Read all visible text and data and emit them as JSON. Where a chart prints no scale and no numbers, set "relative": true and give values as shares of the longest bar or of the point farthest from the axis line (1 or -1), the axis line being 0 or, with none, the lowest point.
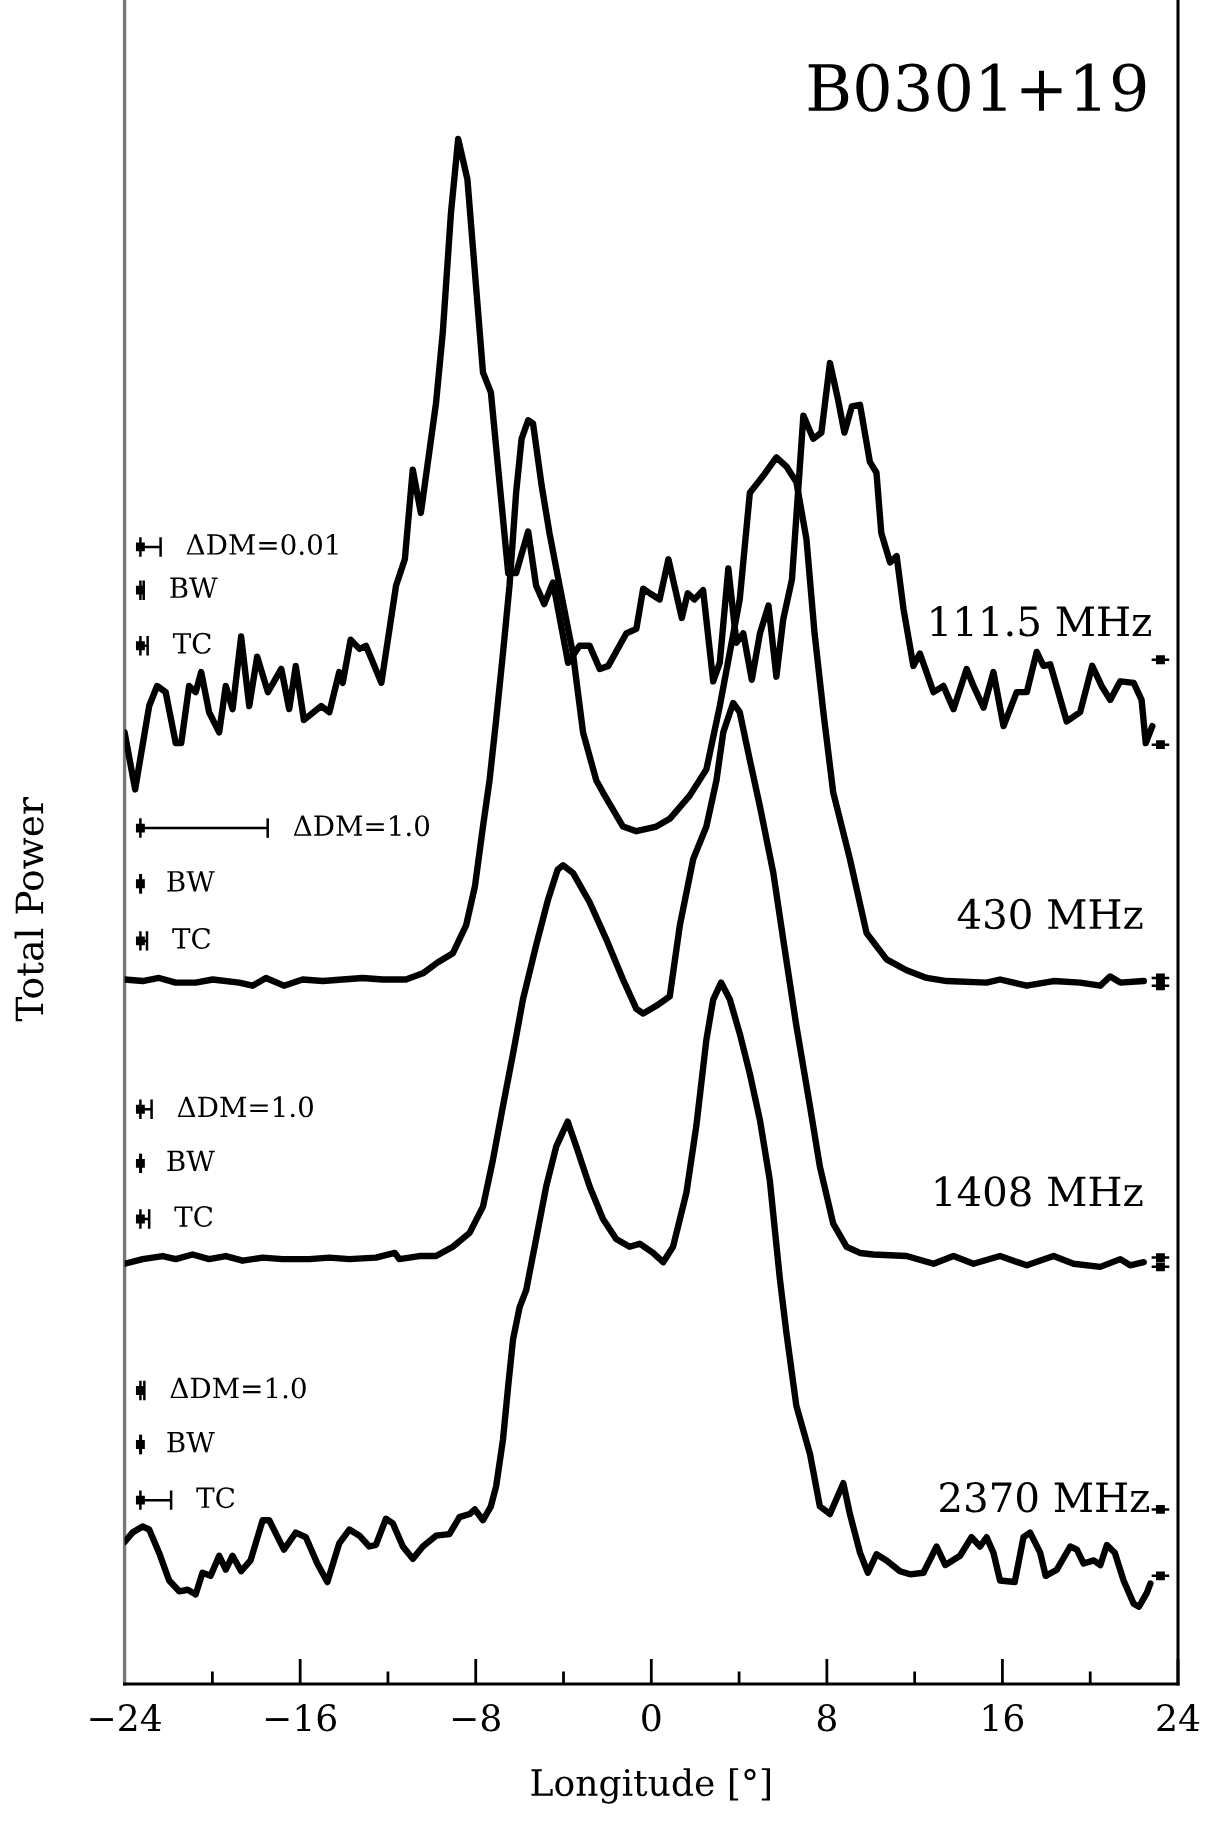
{
  "chart_data": {
    "type": "line",
    "title": "B0301+19",
    "xlabel": "Longitude [°]",
    "ylabel": "Total Power",
    "relative": true,
    "xlim": [
      -24,
      24
    ],
    "xticks": [
      {
        "value": -24,
        "label": "−24"
      },
      {
        "value": -20,
        "label": null
      },
      {
        "value": -16,
        "label": "−16"
      },
      {
        "value": -12,
        "label": null
      },
      {
        "value": -8,
        "label": "−8"
      },
      {
        "value": -4,
        "label": null
      },
      0,
      {
        "value": 4,
        "label": null
      },
      8,
      {
        "value": 12,
        "label": null
      },
      16,
      {
        "value": 20,
        "label": null
      },
      24
    ],
    "series": [
      {
        "name": "111.5 MHz",
        "color": "#000000",
        "x": [
          -24.0,
          -23.52,
          -22.88,
          -22.52,
          -22.13,
          -21.67,
          -21.42,
          -21.06,
          -20.76,
          -20.51,
          -20.15,
          -19.69,
          -19.39,
          -19.08,
          -18.69,
          -18.32,
          -17.96,
          -17.47,
          -16.86,
          -16.5,
          -16.2,
          -15.83,
          -15.04,
          -14.67,
          -14.22,
          -14.06,
          -13.7,
          -13.3,
          -13.0,
          -12.3,
          -11.63,
          -11.23,
          -10.87,
          -10.5,
          -9.81,
          -9.5,
          -9.13,
          -8.8,
          -8.38,
          -7.67,
          -7.31,
          -6.52,
          -6.16,
          -5.61,
          -5.25,
          -4.88,
          -4.48,
          -3.79,
          -3.27,
          -2.81,
          -2.35,
          -1.96,
          -1.14,
          -0.68,
          -0.37,
          -0.07,
          0.38,
          0.78,
          1.39,
          1.66,
          1.96,
          2.36,
          2.82,
          3.12,
          3.51,
          3.88,
          4.19,
          4.58,
          4.95,
          5.34,
          5.7,
          6.01,
          6.41,
          6.93,
          7.38,
          7.75,
          8.14,
          8.5,
          8.8,
          9.14,
          9.51,
          9.96,
          10.26,
          10.48,
          10.88,
          11.18,
          11.49,
          11.94,
          12.24,
          12.86,
          13.31,
          13.77,
          14.37,
          14.68,
          15.14,
          15.59,
          16.05,
          16.65,
          17.11,
          17.56,
          17.87,
          18.18,
          18.93,
          19.54,
          20.09,
          20.52,
          20.91,
          21.37,
          21.98,
          22.34,
          22.53,
          22.83
        ],
        "values": [
          0.616,
          0.579,
          0.633,
          0.646,
          0.642,
          0.609,
          0.609,
          0.646,
          0.642,
          0.655,
          0.629,
          0.616,
          0.646,
          0.631,
          0.678,
          0.633,
          0.665,
          0.642,
          0.657,
          0.631,
          0.659,
          0.624,
          0.633,
          0.629,
          0.655,
          0.648,
          0.676,
          0.67,
          0.672,
          0.648,
          0.711,
          0.728,
          0.786,
          0.758,
          0.829,
          0.875,
          0.952,
          1.0,
          0.974,
          0.849,
          0.836,
          0.719,
          0.719,
          0.746,
          0.711,
          0.699,
          0.713,
          0.661,
          0.672,
          0.672,
          0.657,
          0.659,
          0.68,
          0.683,
          0.709,
          0.706,
          0.702,
          0.728,
          0.69,
          0.706,
          0.702,
          0.708,
          0.649,
          0.661,
          0.722,
          0.674,
          0.68,
          0.65,
          0.68,
          0.698,
          0.652,
          0.689,
          0.715,
          0.821,
          0.806,
          0.81,
          0.855,
          0.832,
          0.81,
          0.827,
          0.828,
          0.791,
          0.784,
          0.745,
          0.726,
          0.73,
          0.696,
          0.659,
          0.667,
          0.642,
          0.646,
          0.631,
          0.657,
          0.646,
          0.632,
          0.655,
          0.62,
          0.642,
          0.642,
          0.668,
          0.659,
          0.66,
          0.623,
          0.629,
          0.659,
          0.646,
          0.637,
          0.649,
          0.648,
          0.637,
          0.609,
          0.62
        ]
      },
      {
        "name": "430 MHz",
        "color": "#000000",
        "x": [
          -24.0,
          -23.18,
          -22.43,
          -21.67,
          -20.76,
          -19.99,
          -18.78,
          -18.17,
          -17.56,
          -16.74,
          -15.89,
          -14.97,
          -14.06,
          -13.15,
          -12.24,
          -11.18,
          -10.41,
          -9.74,
          -9.04,
          -8.44,
          -8.04,
          -7.67,
          -7.37,
          -7.07,
          -6.76,
          -6.46,
          -6.16,
          -5.91,
          -5.61,
          -5.39,
          -5.0,
          -4.64,
          -4.18,
          -3.57,
          -3.11,
          -2.51,
          -2.2,
          -1.29,
          -0.68,
          0.23,
          0.84,
          1.75,
          2.51,
          3.12,
          4.03,
          4.49,
          5.1,
          5.7,
          6.16,
          6.61,
          7.07,
          7.44,
          7.84,
          8.29,
          9.05,
          9.81,
          10.72,
          11.63,
          12.55,
          13.46,
          15.28,
          15.89,
          17.11,
          18.33,
          19.54,
          20.46,
          20.91,
          21.37,
          22.44
        ],
        "values": [
          0.456,
          0.455,
          0.457,
          0.454,
          0.454,
          0.456,
          0.454,
          0.452,
          0.457,
          0.452,
          0.456,
          0.455,
          0.456,
          0.457,
          0.456,
          0.456,
          0.46,
          0.467,
          0.473,
          0.491,
          0.516,
          0.555,
          0.585,
          0.624,
          0.667,
          0.711,
          0.771,
          0.806,
          0.818,
          0.816,
          0.776,
          0.745,
          0.711,
          0.667,
          0.616,
          0.585,
          0.577,
          0.555,
          0.552,
          0.555,
          0.56,
          0.575,
          0.592,
          0.633,
          0.702,
          0.771,
          0.782,
          0.794,
          0.788,
          0.778,
          0.741,
          0.68,
          0.629,
          0.577,
          0.534,
          0.486,
          0.469,
          0.462,
          0.457,
          0.455,
          0.454,
          0.456,
          0.452,
          0.455,
          0.454,
          0.452,
          0.458,
          0.454,
          0.455
        ]
      },
      {
        "name": "1408 MHz",
        "color": "#000000",
        "x": [
          -24.0,
          -23.18,
          -22.27,
          -21.67,
          -20.9,
          -20.15,
          -19.39,
          -18.62,
          -17.71,
          -16.8,
          -15.58,
          -14.67,
          -13.76,
          -12.55,
          -11.69,
          -11.48,
          -10.57,
          -9.81,
          -9.04,
          -8.28,
          -7.67,
          -7.22,
          -6.76,
          -6.3,
          -5.85,
          -5.25,
          -4.7,
          -4.27,
          -4.02,
          -3.57,
          -2.81,
          -2.05,
          -1.29,
          -0.68,
          -0.37,
          0.23,
          0.84,
          0.99,
          1.3,
          1.91,
          2.51,
          2.97,
          3.28,
          3.73,
          4.03,
          4.49,
          4.95,
          5.56,
          6.01,
          6.61,
          7.23,
          7.68,
          8.29,
          8.9,
          9.51,
          10.12,
          11.63,
          12.86,
          13.77,
          14.68,
          15.89,
          17.11,
          18.33,
          19.24,
          20.46,
          21.37,
          21.82,
          22.44
        ],
        "values": [
          0.272,
          0.275,
          0.277,
          0.275,
          0.278,
          0.275,
          0.277,
          0.274,
          0.276,
          0.275,
          0.275,
          0.276,
          0.275,
          0.276,
          0.279,
          0.275,
          0.277,
          0.277,
          0.283,
          0.292,
          0.309,
          0.339,
          0.374,
          0.408,
          0.443,
          0.478,
          0.508,
          0.527,
          0.53,
          0.525,
          0.506,
          0.482,
          0.456,
          0.437,
          0.434,
          0.439,
          0.445,
          0.46,
          0.491,
          0.534,
          0.555,
          0.585,
          0.616,
          0.635,
          0.629,
          0.598,
          0.568,
          0.525,
          0.482,
          0.426,
          0.374,
          0.335,
          0.298,
          0.283,
          0.279,
          0.278,
          0.277,
          0.272,
          0.277,
          0.272,
          0.277,
          0.271,
          0.277,
          0.272,
          0.27,
          0.275,
          0.271,
          0.273
        ]
      },
      {
        "name": "2370 MHz",
        "color": "#000000",
        "x": [
          -24.0,
          -23.64,
          -23.18,
          -22.88,
          -22.43,
          -21.97,
          -21.51,
          -21.12,
          -20.76,
          -20.45,
          -20.08,
          -19.69,
          -19.39,
          -19.08,
          -18.69,
          -18.26,
          -17.71,
          -17.41,
          -16.74,
          -16.2,
          -15.74,
          -15.22,
          -14.76,
          -14.22,
          -13.76,
          -13.3,
          -12.85,
          -12.55,
          -12.09,
          -11.78,
          -11.32,
          -10.87,
          -10.41,
          -9.81,
          -9.2,
          -8.74,
          -8.28,
          -8.04,
          -7.67,
          -7.31,
          -7.07,
          -6.76,
          -6.52,
          -6.3,
          -6.0,
          -5.7,
          -5.25,
          -4.79,
          -4.33,
          -3.81,
          -3.42,
          -2.81,
          -2.2,
          -1.6,
          -0.99,
          -0.53,
          0.08,
          0.54,
          0.99,
          1.6,
          2.05,
          2.51,
          2.82,
          3.18,
          3.58,
          4.03,
          4.49,
          4.95,
          5.4,
          5.86,
          6.16,
          6.61,
          7.23,
          7.68,
          8.14,
          8.75,
          9.05,
          9.51,
          9.87,
          10.26,
          10.72,
          11.33,
          11.79,
          12.4,
          13.0,
          13.4,
          14.07,
          14.59,
          14.98,
          15.28,
          15.59,
          15.89,
          16.56,
          16.96,
          17.26,
          17.72,
          17.97,
          18.48,
          19.09,
          19.39,
          19.7,
          20.16,
          20.46,
          20.76,
          21.12,
          21.52,
          21.98,
          22.22,
          22.58,
          22.74
        ],
        "values": [
          0.092,
          0.098,
          0.102,
          0.1,
          0.085,
          0.067,
          0.06,
          0.061,
          0.058,
          0.072,
          0.07,
          0.083,
          0.074,
          0.083,
          0.073,
          0.08,
          0.106,
          0.106,
          0.087,
          0.098,
          0.095,
          0.078,
          0.066,
          0.091,
          0.1,
          0.096,
          0.089,
          0.09,
          0.107,
          0.104,
          0.089,
          0.081,
          0.089,
          0.096,
          0.097,
          0.108,
          0.11,
          0.113,
          0.106,
          0.115,
          0.128,
          0.158,
          0.193,
          0.223,
          0.244,
          0.255,
          0.288,
          0.322,
          0.348,
          0.364,
          0.348,
          0.322,
          0.301,
          0.288,
          0.283,
          0.285,
          0.279,
          0.273,
          0.283,
          0.318,
          0.361,
          0.417,
          0.443,
          0.454,
          0.443,
          0.421,
          0.395,
          0.365,
          0.326,
          0.262,
          0.227,
          0.18,
          0.149,
          0.115,
          0.11,
          0.13,
          0.11,
          0.085,
          0.072,
          0.084,
          0.08,
          0.073,
          0.071,
          0.072,
          0.089,
          0.077,
          0.083,
          0.095,
          0.089,
          0.095,
          0.085,
          0.067,
          0.066,
          0.095,
          0.098,
          0.085,
          0.07,
          0.074,
          0.089,
          0.087,
          0.078,
          0.08,
          0.077,
          0.09,
          0.085,
          0.067,
          0.052,
          0.05,
          0.059,
          0.065
        ]
      },
      {
        "type": "scatter",
        "marker": "square",
        "color": "#000000",
        "x": [
          -23.28,
          -23.28,
          -23.28,
          -23.28,
          -23.28,
          -23.28,
          -23.28,
          -23.28,
          -23.28,
          -23.28,
          -23.28,
          -23.28
        ],
        "values": [
          0.736,
          0.708,
          0.672,
          0.554,
          0.518,
          0.481,
          0.372,
          0.337,
          0.301,
          0.19,
          0.155,
          0.119
        ],
        "xerrors": [
          [
            -23.28,
            -22.36
          ],
          [
            -23.28,
            -23.13
          ],
          [
            -23.28,
            -22.95
          ],
          [
            -23.28,
            -17.48
          ],
          [
            -23.28,
            -23.26
          ],
          [
            -23.28,
            -22.98
          ],
          [
            -23.28,
            -22.77
          ],
          [
            -23.28,
            -23.26
          ],
          [
            -23.28,
            -22.88
          ],
          [
            -23.28,
            -23.1
          ],
          [
            -23.28,
            -23.26
          ],
          [
            -23.28,
            -21.88
          ]
        ]
      },
      {
        "type": "scatter",
        "marker": "square",
        "color": "#000000",
        "x": [
          23.2,
          23.2,
          23.2,
          23.2,
          23.2,
          23.2,
          23.2,
          23.2
        ],
        "values": [
          0.663,
          0.608,
          0.457,
          0.452,
          0.276,
          0.27,
          0.113,
          0.07
        ],
        "xerrors": [
          [
            22.8,
            23.6
          ],
          [
            22.8,
            23.6
          ],
          [
            22.8,
            23.6
          ],
          [
            22.8,
            23.6
          ],
          [
            22.8,
            23.6
          ],
          [
            22.8,
            23.6
          ],
          [
            22.8,
            23.6
          ],
          [
            22.8,
            23.6
          ]
        ]
      }
    ],
    "annotations": [
      {
        "text": "ΔDM=0.01",
        "x": -22.36,
        "y": 0.736
      },
      {
        "text": "BW",
        "x": -23.13,
        "y": 0.708
      },
      {
        "text": "TC",
        "x": -22.95,
        "y": 0.672
      },
      {
        "text": "ΔDM=1.0",
        "x": -17.48,
        "y": 0.554
      },
      {
        "text": "BW",
        "x": -23.26,
        "y": 0.518
      },
      {
        "text": "TC",
        "x": -22.98,
        "y": 0.481
      },
      {
        "text": "ΔDM=1.0",
        "x": -22.77,
        "y": 0.372
      },
      {
        "text": "BW",
        "x": -23.26,
        "y": 0.337
      },
      {
        "text": "TC",
        "x": -22.88,
        "y": 0.301
      },
      {
        "text": "ΔDM=1.0",
        "x": -23.1,
        "y": 0.19
      },
      {
        "text": "BW",
        "x": -23.26,
        "y": 0.155
      },
      {
        "text": "TC",
        "x": -21.88,
        "y": 0.119
      }
    ]
  }
}
